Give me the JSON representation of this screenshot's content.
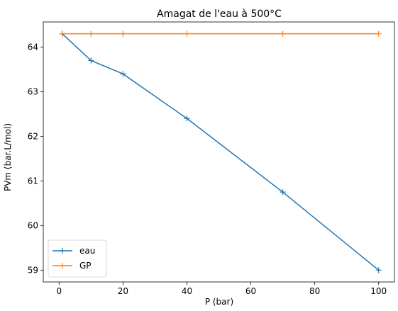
{
  "chart_data": {
    "type": "line",
    "title": "Amagat de l'eau à 500°C",
    "xlabel": "P (bar)",
    "ylabel": "PVm (bar.L/mol)",
    "xlim": [
      -4.95,
      104.95
    ],
    "ylim": [
      58.735,
      64.565
    ],
    "xticks": [
      0,
      20,
      40,
      60,
      80,
      100
    ],
    "yticks": [
      59,
      60,
      61,
      62,
      63,
      64
    ],
    "grid": false,
    "legend_position": "lower left",
    "series": [
      {
        "name": "eau",
        "color": "#1f77b4",
        "marker": "+",
        "x": [
          1,
          10,
          20,
          40,
          70,
          100
        ],
        "y": [
          64.3,
          63.7,
          63.4,
          62.4,
          60.75,
          59.0
        ]
      },
      {
        "name": "GP",
        "color": "#ff7f0e",
        "marker": "+",
        "x": [
          1,
          10,
          20,
          40,
          70,
          100
        ],
        "y": [
          64.3,
          64.3,
          64.3,
          64.3,
          64.3,
          64.3
        ]
      }
    ]
  }
}
